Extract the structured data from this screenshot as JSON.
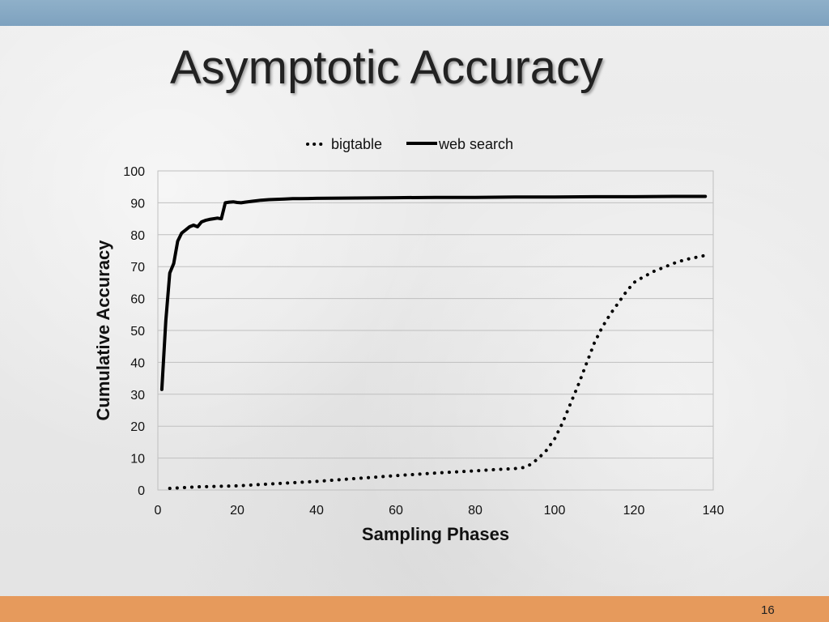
{
  "slide": {
    "title": "Asymptotic Accuracy",
    "page_number": "16"
  },
  "colors": {
    "top_bar": "#7ea2bf",
    "bottom_bar": "#e69a5c",
    "series_line": "#000000",
    "gridline": "#bfbfbf"
  },
  "chart_data": {
    "type": "line",
    "title": "",
    "xlabel": "Sampling Phases",
    "ylabel": "Cumulative Accuracy",
    "xlim": [
      0,
      140
    ],
    "ylim": [
      0,
      100
    ],
    "xticks": [
      0,
      20,
      40,
      60,
      80,
      100,
      120,
      140
    ],
    "yticks": [
      0,
      10,
      20,
      30,
      40,
      50,
      60,
      70,
      80,
      90,
      100
    ],
    "grid": true,
    "legend_position": "top-center",
    "series": [
      {
        "name": "bigtable",
        "style": "dotted",
        "x": [
          3,
          10,
          20,
          30,
          40,
          50,
          60,
          70,
          80,
          85,
          90,
          92,
          94,
          96,
          98,
          100,
          102,
          104,
          106,
          108,
          110,
          112,
          114,
          116,
          118,
          120,
          122,
          125,
          128,
          131,
          134,
          138
        ],
        "y": [
          0.5,
          1,
          1.3,
          2,
          2.7,
          3.6,
          4.5,
          5.3,
          6,
          6.4,
          6.7,
          7,
          8,
          10,
          12.5,
          16,
          21,
          27,
          33,
          39.5,
          46,
          51,
          55,
          58.5,
          62,
          65,
          66.5,
          68.5,
          70,
          71.5,
          72.5,
          73.5
        ]
      },
      {
        "name": "web search",
        "style": "solid",
        "x": [
          1,
          2,
          3,
          4,
          5,
          6,
          7,
          8,
          9,
          10,
          11,
          12,
          13,
          14,
          15,
          16,
          17,
          18,
          19,
          20,
          21,
          22,
          24,
          26,
          28,
          30,
          32,
          34,
          36,
          40,
          50,
          60,
          70,
          80,
          90,
          100,
          110,
          120,
          130,
          138
        ],
        "y": [
          31.5,
          53,
          68,
          71,
          78,
          80.5,
          81.5,
          82.5,
          83,
          82.5,
          84,
          84.5,
          84.8,
          85,
          85.2,
          85,
          90,
          90.2,
          90.3,
          90.1,
          90,
          90.2,
          90.5,
          90.8,
          91,
          91.1,
          91.2,
          91.3,
          91.3,
          91.4,
          91.5,
          91.6,
          91.7,
          91.7,
          91.8,
          91.8,
          91.9,
          91.9,
          92,
          92
        ]
      }
    ]
  }
}
